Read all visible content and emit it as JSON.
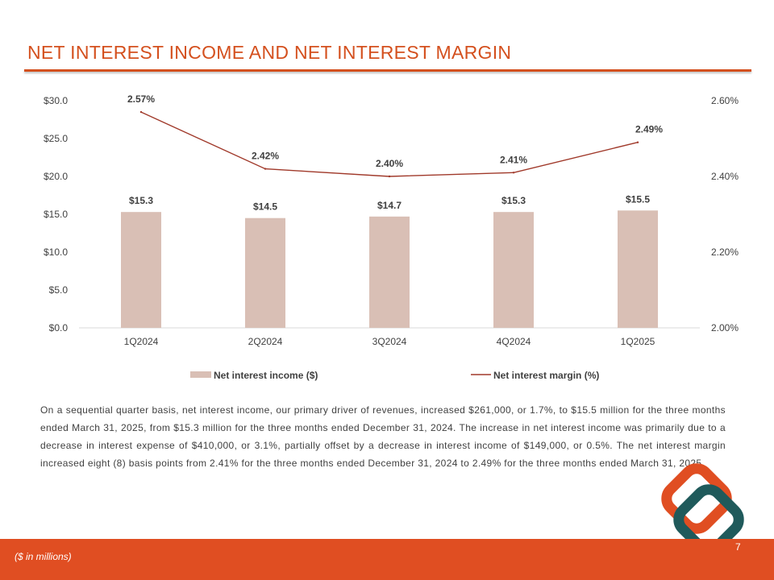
{
  "page": {
    "title": "NET INTEREST INCOME AND NET INTEREST MARGIN",
    "paragraph": "On a sequential quarter basis, net interest income, our primary driver of revenues, increased $261,000, or 1.7%, to $15.5 million for the three months ended March 31, 2025, from $15.3 million for the three months ended December 31, 2024. The increase in net interest income was primarily due to a decrease in interest expense of $410,000, or 3.1%, partially offset by a decrease in interest income of $149,000, or 0.5%. The net interest margin increased eight (8) basis points from 2.41% for the three months ended December 31, 2024 to 2.49% for the three months ended March 31, 2025.",
    "footnote": "($ in millions)",
    "page_number": "7"
  },
  "colors": {
    "accent": "#d4501e",
    "footer": "#e04e22",
    "bar": "#d9bfb5",
    "line": "#a0392a",
    "logo_orange": "#e04e22",
    "logo_teal": "#1f5a5b"
  },
  "chart_data": {
    "type": "bar",
    "categories": [
      "1Q2024",
      "2Q2024",
      "3Q2024",
      "4Q2024",
      "1Q2025"
    ],
    "series": [
      {
        "name": "Net interest income ($)",
        "type": "bar",
        "axis": "left",
        "values": [
          15.3,
          14.5,
          14.7,
          15.3,
          15.5
        ],
        "labels": [
          "$15.3",
          "$14.5",
          "$14.7",
          "$15.3",
          "$15.5"
        ]
      },
      {
        "name": "Net interest margin (%)",
        "type": "line",
        "axis": "right",
        "values": [
          2.57,
          2.42,
          2.4,
          2.41,
          2.49
        ],
        "labels": [
          "2.57%",
          "2.42%",
          "2.40%",
          "2.41%",
          "2.49%"
        ]
      }
    ],
    "y_left": {
      "ylim": [
        0,
        30
      ],
      "ticks": [
        "$0.0",
        "$5.0",
        "$10.0",
        "$15.0",
        "$20.0",
        "$25.0",
        "$30.0"
      ]
    },
    "y_right": {
      "ylim": [
        2.0,
        2.6
      ],
      "ticks": [
        "2.00%",
        "2.20%",
        "2.40%",
        "2.60%"
      ]
    },
    "grid": false,
    "legend": "bottom"
  }
}
